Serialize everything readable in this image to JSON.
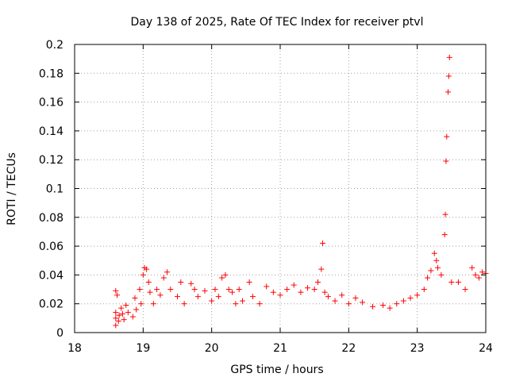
{
  "chart_data": {
    "type": "scatter",
    "title": "Day 138 of 2025, Rate Of TEC Index for receiver ptvl",
    "xlabel": "GPS time / hours",
    "ylabel": "ROTI / TECUs",
    "xlim": [
      18,
      24
    ],
    "ylim": [
      0,
      0.2
    ],
    "x_ticks": [
      "18",
      "19",
      "20",
      "21",
      "22",
      "23",
      "24"
    ],
    "y_ticks": [
      "0",
      "0.02",
      "0.04",
      "0.06",
      "0.08",
      "0.1",
      "0.12",
      "0.14",
      "0.16",
      "0.18",
      "0.2"
    ],
    "grid": true,
    "marker": "plus",
    "color": "#ff0000",
    "series": [
      {
        "name": "ROTI",
        "points": [
          [
            18.6,
            0.005
          ],
          [
            18.6,
            0.01
          ],
          [
            18.6,
            0.014
          ],
          [
            18.6,
            0.029
          ],
          [
            18.62,
            0.026
          ],
          [
            18.64,
            0.008
          ],
          [
            18.65,
            0.012
          ],
          [
            18.68,
            0.017
          ],
          [
            18.7,
            0.013
          ],
          [
            18.72,
            0.009
          ],
          [
            18.75,
            0.019
          ],
          [
            18.78,
            0.014
          ],
          [
            18.85,
            0.011
          ],
          [
            18.88,
            0.024
          ],
          [
            18.9,
            0.016
          ],
          [
            18.95,
            0.03
          ],
          [
            18.97,
            0.02
          ],
          [
            19.0,
            0.04
          ],
          [
            19.02,
            0.045
          ],
          [
            19.05,
            0.044
          ],
          [
            19.08,
            0.035
          ],
          [
            19.1,
            0.028
          ],
          [
            19.15,
            0.02
          ],
          [
            19.2,
            0.03
          ],
          [
            19.25,
            0.026
          ],
          [
            19.3,
            0.038
          ],
          [
            19.35,
            0.042
          ],
          [
            19.4,
            0.03
          ],
          [
            19.5,
            0.025
          ],
          [
            19.55,
            0.035
          ],
          [
            19.6,
            0.02
          ],
          [
            19.7,
            0.034
          ],
          [
            19.75,
            0.03
          ],
          [
            19.8,
            0.025
          ],
          [
            19.9,
            0.029
          ],
          [
            20.0,
            0.022
          ],
          [
            20.05,
            0.03
          ],
          [
            20.1,
            0.025
          ],
          [
            20.15,
            0.038
          ],
          [
            20.2,
            0.04
          ],
          [
            20.25,
            0.03
          ],
          [
            20.3,
            0.028
          ],
          [
            20.35,
            0.02
          ],
          [
            20.4,
            0.03
          ],
          [
            20.45,
            0.022
          ],
          [
            20.55,
            0.035
          ],
          [
            20.6,
            0.025
          ],
          [
            20.7,
            0.02
          ],
          [
            20.8,
            0.032
          ],
          [
            20.9,
            0.028
          ],
          [
            21.0,
            0.026
          ],
          [
            21.1,
            0.03
          ],
          [
            21.2,
            0.033
          ],
          [
            21.3,
            0.028
          ],
          [
            21.4,
            0.031
          ],
          [
            21.5,
            0.03
          ],
          [
            21.55,
            0.035
          ],
          [
            21.6,
            0.044
          ],
          [
            21.62,
            0.062
          ],
          [
            21.65,
            0.028
          ],
          [
            21.7,
            0.025
          ],
          [
            21.8,
            0.022
          ],
          [
            21.9,
            0.026
          ],
          [
            22.0,
            0.02
          ],
          [
            22.1,
            0.024
          ],
          [
            22.2,
            0.021
          ],
          [
            22.35,
            0.018
          ],
          [
            22.5,
            0.019
          ],
          [
            22.6,
            0.017
          ],
          [
            22.7,
            0.02
          ],
          [
            22.8,
            0.022
          ],
          [
            22.9,
            0.024
          ],
          [
            23.0,
            0.026
          ],
          [
            23.1,
            0.03
          ],
          [
            23.15,
            0.038
          ],
          [
            23.2,
            0.043
          ],
          [
            23.25,
            0.055
          ],
          [
            23.28,
            0.05
          ],
          [
            23.3,
            0.045
          ],
          [
            23.35,
            0.04
          ],
          [
            23.4,
            0.068
          ],
          [
            23.41,
            0.082
          ],
          [
            23.42,
            0.119
          ],
          [
            23.43,
            0.136
          ],
          [
            23.45,
            0.167
          ],
          [
            23.46,
            0.178
          ],
          [
            23.47,
            0.191
          ],
          [
            23.5,
            0.035
          ],
          [
            23.6,
            0.035
          ],
          [
            23.7,
            0.03
          ],
          [
            23.8,
            0.045
          ],
          [
            23.85,
            0.04
          ],
          [
            23.9,
            0.038
          ],
          [
            23.95,
            0.042
          ],
          [
            24.0,
            0.041
          ]
        ]
      }
    ]
  }
}
